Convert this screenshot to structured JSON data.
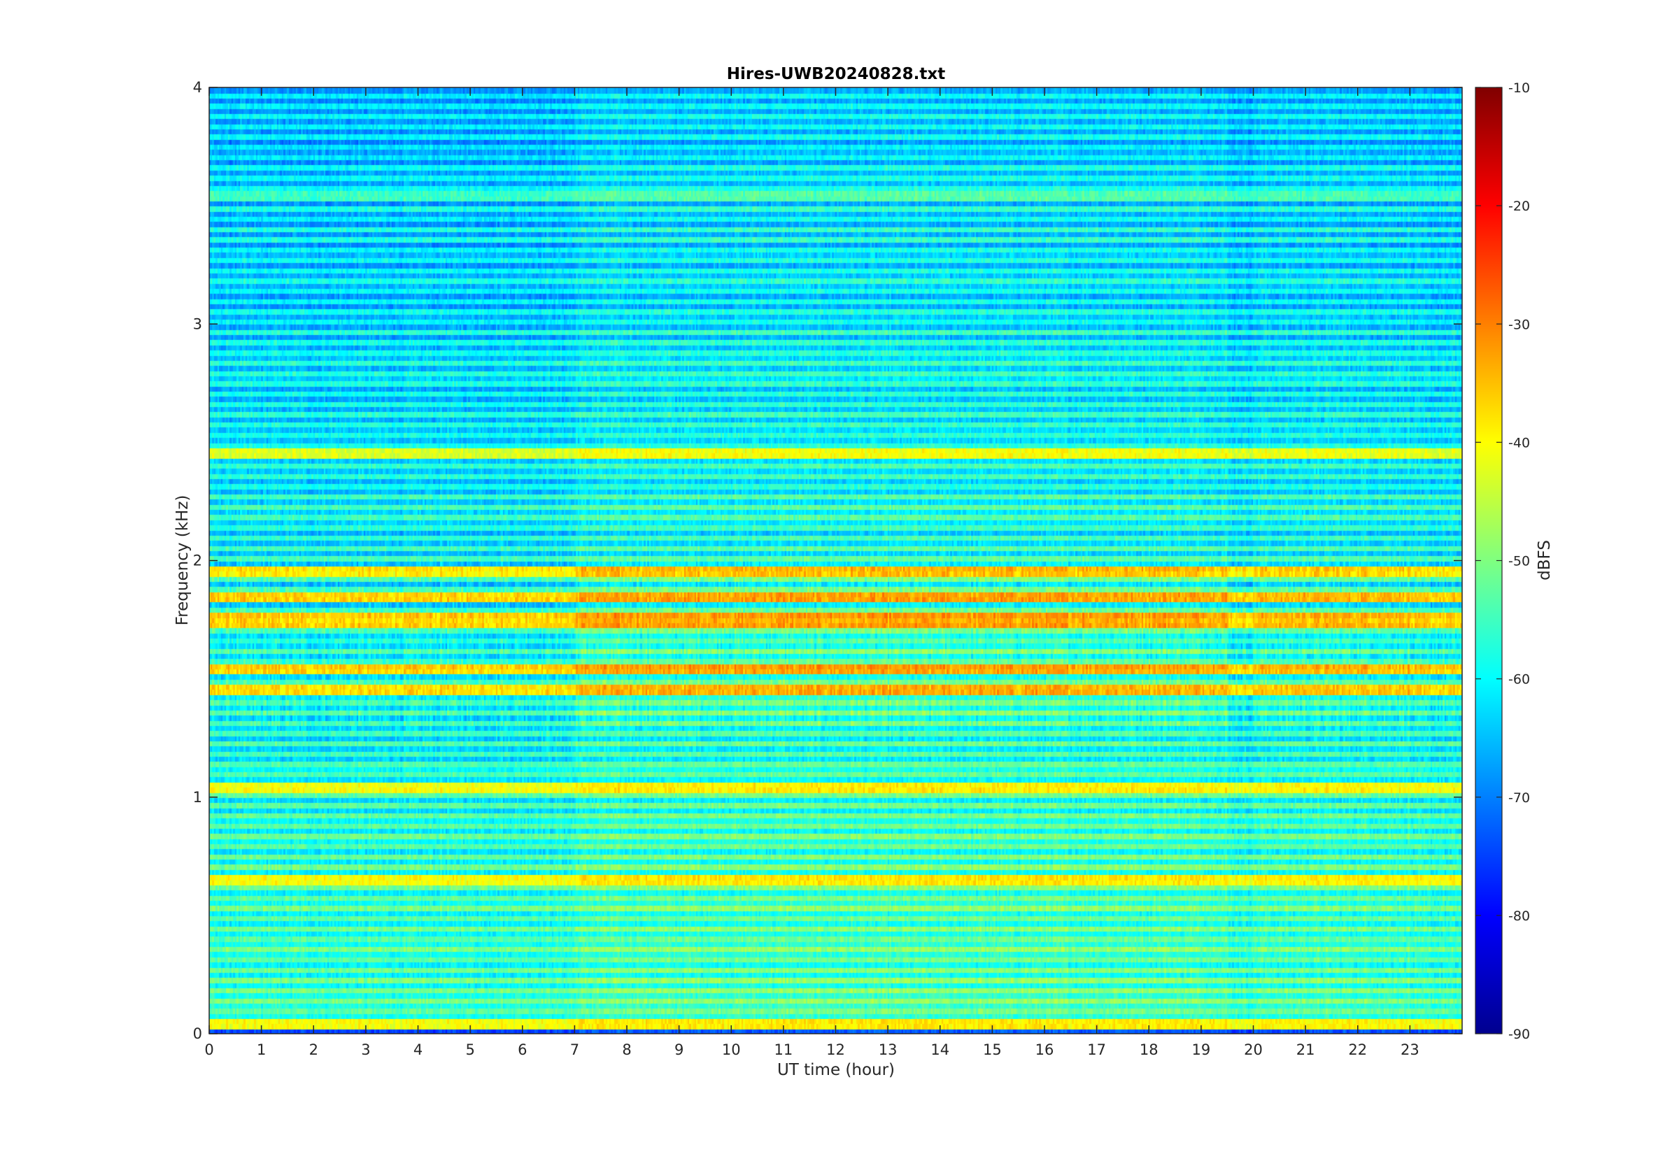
{
  "chart_data": {
    "type": "heatmap",
    "title": "Hires-UWB20240828.txt",
    "xlabel": "UT time (hour)",
    "ylabel": "Frequency (kHz)",
    "xlim": [
      0,
      24
    ],
    "ylim": [
      0,
      4
    ],
    "x_ticks": [
      "0",
      "1",
      "2",
      "3",
      "4",
      "5",
      "6",
      "7",
      "8",
      "9",
      "10",
      "11",
      "12",
      "13",
      "14",
      "15",
      "16",
      "17",
      "18",
      "19",
      "20",
      "21",
      "22",
      "23"
    ],
    "y_ticks": [
      "0",
      "1",
      "2",
      "3",
      "4"
    ],
    "colorbar": {
      "label": "dBFS",
      "range": [
        -90,
        -10
      ],
      "ticks": [
        "-10",
        "-20",
        "-30",
        "-40",
        "-50",
        "-60",
        "-70",
        "-80",
        "-90"
      ],
      "colormap": "jet"
    },
    "band_levels_dBFS": [
      {
        "freq_khz": 0.05,
        "level": -41
      },
      {
        "freq_khz": 0.65,
        "level": -40
      },
      {
        "freq_khz": 1.05,
        "level": -41
      },
      {
        "freq_khz": 1.45,
        "level": -38
      },
      {
        "freq_khz": 1.55,
        "level": -37
      },
      {
        "freq_khz": 1.75,
        "level": -37
      },
      {
        "freq_khz": 1.85,
        "level": -37
      },
      {
        "freq_khz": 1.95,
        "level": -39
      },
      {
        "freq_khz": 2.45,
        "level": -43
      },
      {
        "freq_khz": 3.55,
        "level": -55
      }
    ]
  },
  "colors": {
    "axis": "#262626",
    "colormap_low": "#00008f",
    "colormap_high": "#800000"
  }
}
